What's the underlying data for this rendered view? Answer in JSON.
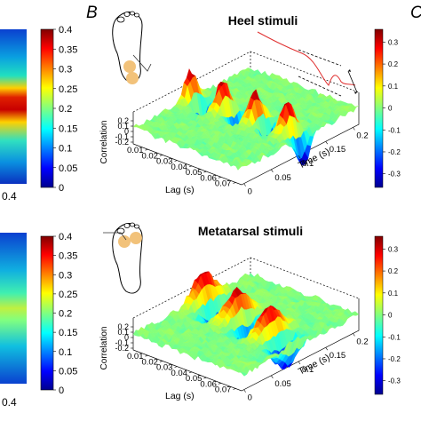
{
  "panels": {
    "left_label": "",
    "middle_label": "B",
    "right_label": "C"
  },
  "left_strip": {
    "top": {
      "colorbar_ticks": [
        "0.4",
        "0.35",
        "0.3",
        "0.25",
        "0.2",
        "0.15",
        "0.1",
        "0.05",
        "0"
      ],
      "x_tick": "0.4"
    },
    "bottom": {
      "colorbar_ticks": [
        "0.4",
        "0.35",
        "0.3",
        "0.25",
        "0.2",
        "0.15",
        "0.1",
        "0.05",
        "0"
      ],
      "x_tick": "0.4"
    }
  },
  "chart_data": [
    {
      "type": "heatmap",
      "subtype": "3d-surface",
      "title": "Heel stimuli",
      "xlabel": "Lag (s)",
      "ylabel": "Time (s)",
      "zlabel": "Correlation",
      "lag_ticks": [
        "0.01",
        "0.02",
        "0.03",
        "0.04",
        "0.05",
        "0.06",
        "0.07"
      ],
      "time_ticks": [
        "0",
        "0.05",
        "0.1",
        "0.15",
        "0.2"
      ],
      "z_ticks": [
        "0.2",
        "0.1",
        "0",
        "-0.1",
        "-0.2"
      ],
      "colorbar_ticks": [
        "0.3",
        "0.2",
        "0.1",
        "0",
        "-0.1",
        "-0.2",
        "-0.3"
      ],
      "colorbar_range": [
        -0.3,
        0.3
      ],
      "stimulus_site": "heel"
    },
    {
      "type": "heatmap",
      "subtype": "3d-surface",
      "title": "Metatarsal stimuli",
      "xlabel": "Lag (s)",
      "ylabel": "Time (s)",
      "zlabel": "Correlation",
      "lag_ticks": [
        "0.01",
        "0.02",
        "0.03",
        "0.04",
        "0.05",
        "0.06",
        "0.07"
      ],
      "time_ticks": [
        "0",
        "0.05",
        "0.1",
        "0.15",
        "0.2"
      ],
      "z_ticks": [
        "0.2",
        "0.1",
        "0",
        "-0.1",
        "-0.2"
      ],
      "colorbar_ticks": [
        "0.3",
        "0.2",
        "0.1",
        "0",
        "-0.1",
        "-0.2",
        "-0.3"
      ],
      "colorbar_range": [
        -0.3,
        0.3
      ],
      "stimulus_site": "metatarsal"
    }
  ],
  "colors": {
    "jet_red": "#b40000",
    "jet_yellow": "#ffff00",
    "jet_cyan": "#00ffff",
    "jet_blue": "#00008f",
    "foot_dot": "#f2c27a",
    "annotation_red": "#e03030"
  }
}
